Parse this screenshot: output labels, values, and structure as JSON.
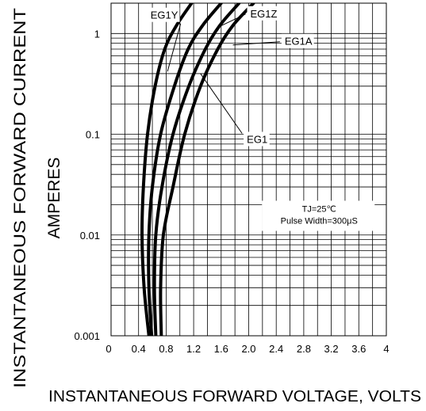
{
  "chart_data": {
    "type": "line",
    "title": "",
    "xlabel": "INSTANTANEOUS FORWARD VOLTAGE,  VOLTS",
    "ylabel_line1": "INSTANTANEOUS FORWARD CURRENT",
    "ylabel_line2": "AMPERES",
    "xlim": [
      0,
      4
    ],
    "ylim": [
      0.001,
      2
    ],
    "y_scale": "log",
    "grid": true,
    "x_ticks": [
      {
        "value": 0,
        "label": "0"
      },
      {
        "value": 0.4,
        "label": "0.4"
      },
      {
        "value": 0.8,
        "label": "0.8"
      },
      {
        "value": 1.2,
        "label": "1.2"
      },
      {
        "value": 1.6,
        "label": "1.6"
      },
      {
        "value": 2.0,
        "label": "2.0"
      },
      {
        "value": 2.4,
        "label": "2.4"
      },
      {
        "value": 2.8,
        "label": "2.8"
      },
      {
        "value": 3.2,
        "label": "3.2"
      },
      {
        "value": 3.6,
        "label": "3.6"
      },
      {
        "value": 4.0,
        "label": "4"
      }
    ],
    "y_ticks": [
      {
        "value": 1,
        "label": "1"
      },
      {
        "value": 0.1,
        "label": "0.1"
      },
      {
        "value": 0.01,
        "label": "0.01"
      },
      {
        "value": 0.001,
        "label": "0.001"
      }
    ],
    "annotation_lines": [
      "TJ=25℃",
      "Pulse Width=300μS"
    ],
    "series": [
      {
        "name": "EG1Y",
        "points": [
          [
            0.55,
            0.001
          ],
          [
            0.48,
            0.003
          ],
          [
            0.45,
            0.01
          ],
          [
            0.47,
            0.03
          ],
          [
            0.53,
            0.1
          ],
          [
            0.64,
            0.3
          ],
          [
            0.78,
            0.7
          ],
          [
            0.95,
            1.2
          ],
          [
            1.17,
            2.0
          ]
        ]
      },
      {
        "name": "EG1",
        "points": [
          [
            0.59,
            0.001
          ],
          [
            0.55,
            0.003
          ],
          [
            0.55,
            0.01
          ],
          [
            0.6,
            0.03
          ],
          [
            0.72,
            0.1
          ],
          [
            0.92,
            0.3
          ],
          [
            1.12,
            0.7
          ],
          [
            1.33,
            1.2
          ],
          [
            1.6,
            2.0
          ]
        ]
      },
      {
        "name": "EG1Z",
        "points": [
          [
            0.65,
            0.001
          ],
          [
            0.63,
            0.003
          ],
          [
            0.65,
            0.01
          ],
          [
            0.74,
            0.03
          ],
          [
            0.9,
            0.1
          ],
          [
            1.13,
            0.3
          ],
          [
            1.37,
            0.7
          ],
          [
            1.58,
            1.2
          ],
          [
            1.86,
            2.0
          ]
        ]
      },
      {
        "name": "EG1A",
        "points": [
          [
            0.73,
            0.001
          ],
          [
            0.72,
            0.003
          ],
          [
            0.76,
            0.01
          ],
          [
            0.9,
            0.03
          ],
          [
            1.07,
            0.1
          ],
          [
            1.3,
            0.3
          ],
          [
            1.55,
            0.7
          ],
          [
            1.77,
            1.2
          ],
          [
            2.07,
            2.0
          ]
        ]
      }
    ],
    "series_labels": [
      {
        "name": "EG1Y",
        "label": "EG1Y",
        "text_at": [
          0.55,
          1.4
        ],
        "leader_to": [
          0.82,
          0.42
        ]
      },
      {
        "name": "EG1Z",
        "label": "EG1Z",
        "text_at": [
          2.0,
          1.45
        ],
        "leader_to": [
          1.55,
          1.15
        ]
      },
      {
        "name": "EG1A",
        "label": "EG1A",
        "text_at": [
          2.5,
          0.77
        ],
        "leader_to": [
          1.77,
          0.77
        ]
      },
      {
        "name": "EG1",
        "label": "EG1",
        "text_at": [
          1.95,
          0.082
        ],
        "leader_to": [
          1.3,
          0.4
        ]
      }
    ],
    "line_color": "#000000"
  }
}
